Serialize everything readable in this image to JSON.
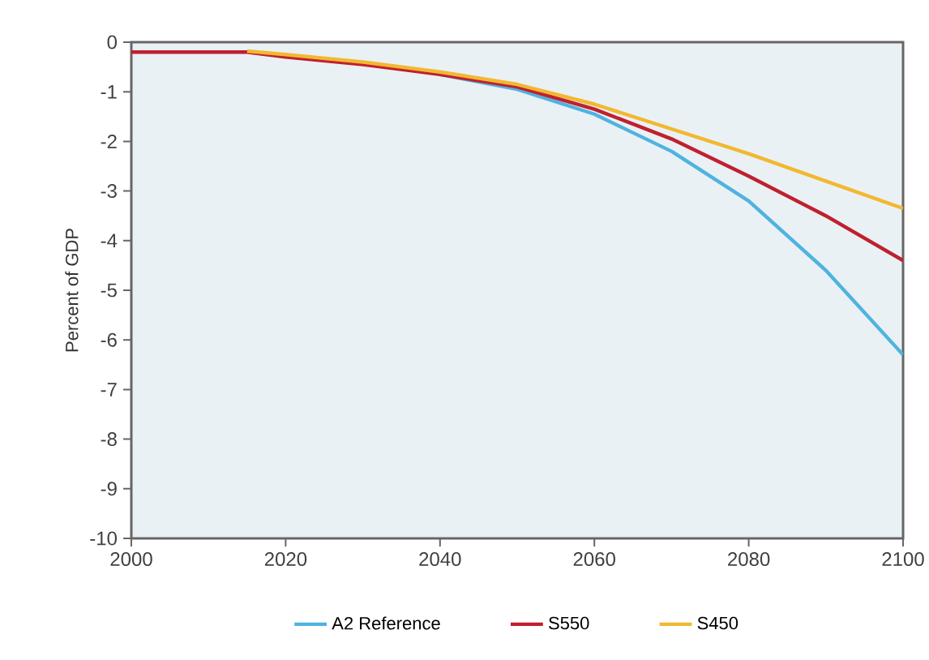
{
  "chart_data": {
    "type": "line",
    "ylabel": "Percent of GDP",
    "x": [
      2000,
      2010,
      2015,
      2020,
      2030,
      2040,
      2050,
      2060,
      2070,
      2080,
      2090,
      2100
    ],
    "series": [
      {
        "name": "A2 Reference",
        "color": "#4fb3e0",
        "values": [
          null,
          null,
          null,
          null,
          null,
          -0.65,
          -0.95,
          -1.45,
          -2.2,
          -3.2,
          -4.6,
          -6.3
        ]
      },
      {
        "name": "S550",
        "color": "#c0202f",
        "values": [
          -0.2,
          -0.2,
          -0.2,
          -0.3,
          -0.45,
          -0.65,
          -0.9,
          -1.35,
          -1.95,
          -2.7,
          -3.5,
          -4.4
        ]
      },
      {
        "name": "S450",
        "color": "#f2b830",
        "values": [
          null,
          null,
          -0.18,
          -0.25,
          -0.4,
          -0.6,
          -0.85,
          -1.25,
          -1.75,
          -2.25,
          -2.8,
          -3.35
        ]
      }
    ],
    "xlim": [
      2000,
      2100
    ],
    "xticks": [
      2000,
      2020,
      2040,
      2060,
      2080,
      2100
    ],
    "ylim": [
      -10,
      0
    ],
    "yticks": [
      0,
      -1,
      -2,
      -3,
      -4,
      -5,
      -6,
      -7,
      -8,
      -9,
      -10
    ],
    "legend": "bottom"
  }
}
